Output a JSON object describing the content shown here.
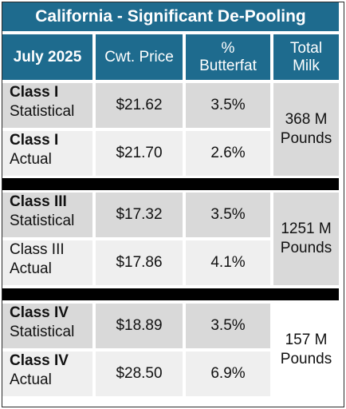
{
  "title": "California - Significant De-Pooling",
  "headers": {
    "col1": "July 2025",
    "col2": "Cwt. Price",
    "col3_line1": "%",
    "col3_line2": "Butterfat",
    "col4_line1": "Total",
    "col4_line2": "Milk"
  },
  "groups": [
    {
      "rows": [
        {
          "name": "Class I",
          "name_bold": true,
          "type": "Statistical",
          "price": "$21.62",
          "butterfat": "3.5%"
        },
        {
          "name": "Class I",
          "name_bold": true,
          "type": "Actual",
          "price": "$21.70",
          "butterfat": "2.6%"
        }
      ],
      "total_line1": "368 M",
      "total_line2": "Pounds"
    },
    {
      "rows": [
        {
          "name": "Class III",
          "name_bold": true,
          "type": "Statistical",
          "price": "$17.32",
          "butterfat": "3.5%"
        },
        {
          "name": "Class III",
          "name_bold": false,
          "type": "Actual",
          "price": "$17.86",
          "butterfat": "4.1%"
        }
      ],
      "total_line1": "1251 M",
      "total_line2": "Pounds"
    },
    {
      "rows": [
        {
          "name": "Class IV",
          "name_bold": true,
          "type": "Statistical",
          "price": "$18.89",
          "butterfat": "3.5%"
        },
        {
          "name": "Class IV",
          "name_bold": true,
          "type": "Actual",
          "price": "$28.50",
          "butterfat": "6.9%"
        }
      ],
      "total_line1": "157 M",
      "total_line2": "Pounds"
    }
  ],
  "colors": {
    "header": "#1e6b8e",
    "row_dark": "#d9d9d9",
    "row_light": "#efefef",
    "separator": "#000000"
  }
}
